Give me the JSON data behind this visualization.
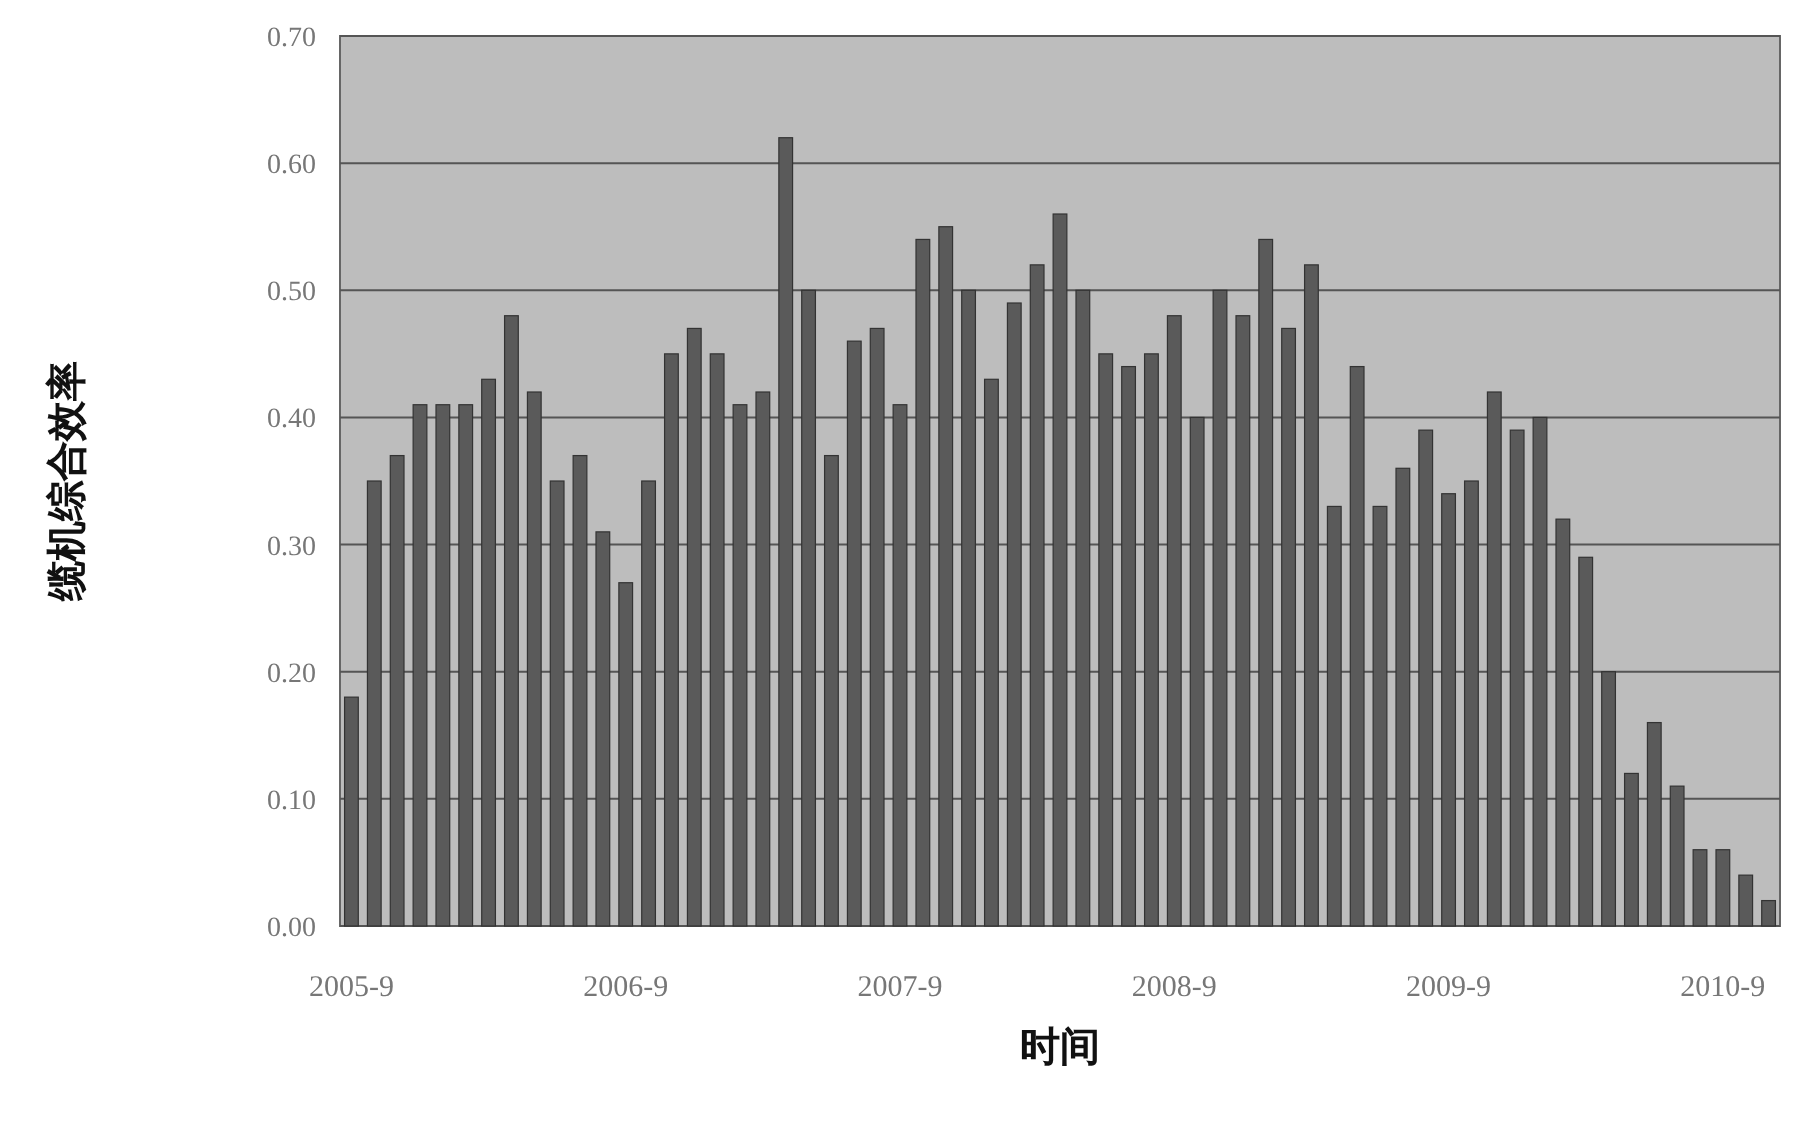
{
  "chart_data": {
    "type": "bar",
    "xlabel": "时间",
    "ylabel": "缆机综合效率",
    "categories": [
      "2005-9",
      null,
      null,
      null,
      null,
      null,
      null,
      null,
      null,
      null,
      null,
      null,
      "2006-9",
      null,
      null,
      null,
      null,
      null,
      null,
      null,
      null,
      null,
      null,
      null,
      "2007-9",
      null,
      null,
      null,
      null,
      null,
      null,
      null,
      null,
      null,
      null,
      null,
      "2008-9",
      null,
      null,
      null,
      null,
      null,
      null,
      null,
      null,
      null,
      null,
      null,
      "2009-9",
      null,
      null,
      null,
      null,
      null,
      null,
      null,
      null,
      null,
      null,
      null,
      "2010-9",
      null,
      null
    ],
    "values": [
      0.18,
      0.35,
      0.37,
      0.41,
      0.41,
      0.41,
      0.43,
      0.48,
      0.42,
      0.35,
      0.37,
      0.31,
      0.27,
      0.35,
      0.45,
      0.47,
      0.45,
      0.41,
      0.42,
      0.62,
      0.5,
      0.37,
      0.46,
      0.47,
      0.41,
      0.54,
      0.55,
      0.5,
      0.43,
      0.49,
      0.52,
      0.56,
      0.5,
      0.45,
      0.44,
      0.45,
      0.48,
      0.4,
      0.5,
      0.48,
      0.54,
      0.47,
      0.52,
      0.33,
      0.44,
      0.33,
      0.36,
      0.39,
      0.34,
      0.35,
      0.42,
      0.39,
      0.4,
      0.32,
      0.29,
      0.2,
      0.12,
      0.16,
      0.11,
      0.06,
      0.06,
      0.04,
      0.02
    ],
    "color": "#5a5a5a",
    "ylim": [
      0,
      0.7
    ],
    "yticks": [
      {
        "value": 0,
        "label": "0.00"
      },
      {
        "value": 0.1,
        "label": "0.10"
      },
      {
        "value": 0.2,
        "label": "0.20"
      },
      {
        "value": 0.3,
        "label": "0.30"
      },
      {
        "value": 0.4,
        "label": "0.40"
      },
      {
        "value": 0.5,
        "label": "0.50"
      },
      {
        "value": 0.6,
        "label": "0.60"
      },
      {
        "value": 0.7,
        "label": "0.70"
      }
    ],
    "grid": "y"
  }
}
